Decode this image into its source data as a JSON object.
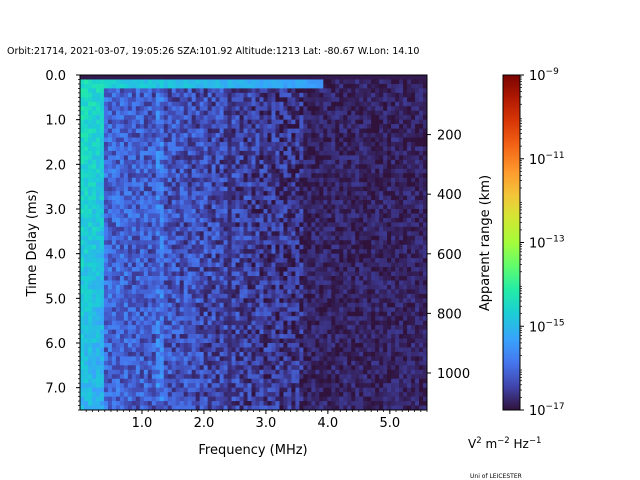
{
  "chart_data": {
    "type": "heatmap",
    "title": "Orbit:21714, 2021-03-07, 19:05:26 SZA:101.92 Altitude:1213 Lat: -80.67 W.Lon: 14.10",
    "xlabel": "Frequency (MHz)",
    "ylabel": "Time Delay (ms)",
    "y2label": "Apparent range (km)",
    "xlim": [
      0.0,
      5.6
    ],
    "ylim": [
      7.5,
      0.0
    ],
    "xticks": [
      {
        "value": 1.0,
        "label": "1.0"
      },
      {
        "value": 2.0,
        "label": "2.0"
      },
      {
        "value": 3.0,
        "label": "3.0"
      },
      {
        "value": 4.0,
        "label": "4.0"
      },
      {
        "value": 5.0,
        "label": "5.0"
      }
    ],
    "yticks": [
      {
        "value": 0.0,
        "label": "0.0"
      },
      {
        "value": 1.0,
        "label": "1.0"
      },
      {
        "value": 2.0,
        "label": "2.0"
      },
      {
        "value": 3.0,
        "label": "3.0"
      },
      {
        "value": 4.0,
        "label": "4.0"
      },
      {
        "value": 5.0,
        "label": "5.0"
      },
      {
        "value": 6.0,
        "label": "6.0"
      },
      {
        "value": 7.0,
        "label": "7.0"
      }
    ],
    "y2ticks": [
      {
        "value": 200,
        "label": "200"
      },
      {
        "value": 400,
        "label": "400"
      },
      {
        "value": 600,
        "label": "600"
      },
      {
        "value": 800,
        "label": "800"
      },
      {
        "value": 1000,
        "label": "1000"
      }
    ],
    "y2_km_per_ms": 149.9,
    "colorbar": {
      "scale": "log",
      "range": [
        1e-17,
        1e-09
      ],
      "colormap": "turbo",
      "ticks": [
        {
          "exp": -17,
          "base": "10",
          "sup": "−17"
        },
        {
          "exp": -15,
          "base": "10",
          "sup": "−15"
        },
        {
          "exp": -13,
          "base": "10",
          "sup": "−13"
        },
        {
          "exp": -11,
          "base": "10",
          "sup": "−11"
        },
        {
          "exp": -9,
          "base": "10",
          "sup": "−9"
        }
      ],
      "unit_parts": {
        "a": "V",
        "a_sup": "2",
        "b": " m",
        "b_sup": "−2",
        "c": " Hz",
        "c_sup": "−1"
      }
    },
    "features": {
      "dominant_log10": -16.2,
      "low_freq_peak_log10": -14.6,
      "band_2p4MHz_log10": -16.7,
      "high_freq_floor_log10": -16.9
    }
  },
  "credit": "Uni of LEICESTER"
}
